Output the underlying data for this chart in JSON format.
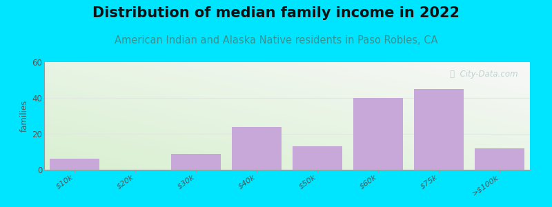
{
  "title": "Distribution of median family income in 2022",
  "subtitle": "American Indian and Alaska Native residents in Paso Robles, CA",
  "categories": [
    "$10k",
    "$20k",
    "$30k",
    "$40k",
    "$50k",
    "$60k",
    "$75k",
    ">$100k"
  ],
  "values": [
    6,
    0,
    9,
    24,
    13,
    40,
    45,
    12
  ],
  "bar_color": "#c8a8d8",
  "background_color": "#00e5ff",
  "plot_bg_color_tl": "#d8f0d0",
  "plot_bg_color_br": "#f8f8f8",
  "ylabel": "families",
  "ylim": [
    0,
    60
  ],
  "yticks": [
    0,
    20,
    40,
    60
  ],
  "title_fontsize": 15,
  "subtitle_fontsize": 10.5,
  "subtitle_color": "#3a9090",
  "watermark_text": "ⓘ  City-Data.com",
  "watermark_color": "#b8cccc",
  "tick_label_color": "#555555",
  "axis_color": "#999999",
  "grid_color": "#e0e8e0",
  "bar_width": 0.82
}
